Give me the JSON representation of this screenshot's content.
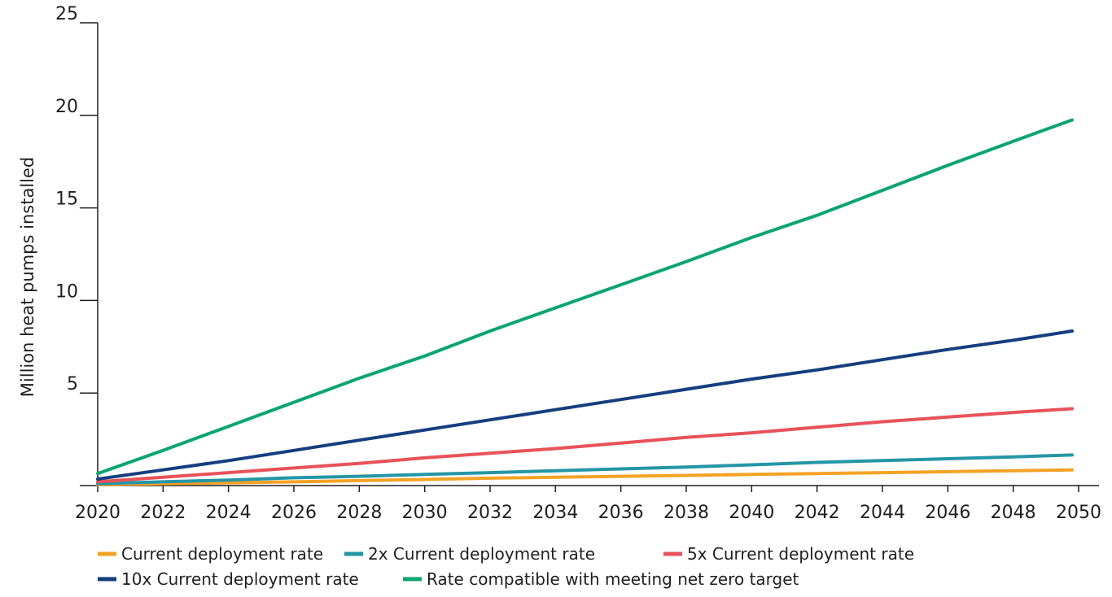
{
  "chart_data": {
    "type": "line",
    "ylabel": "Million heat pumps installed",
    "xlim": [
      2020,
      2050
    ],
    "ylim": [
      0,
      25
    ],
    "x_ticks": [
      2020,
      2022,
      2024,
      2026,
      2028,
      2030,
      2032,
      2034,
      2036,
      2038,
      2040,
      2042,
      2044,
      2046,
      2048,
      2050
    ],
    "y_ticks": [
      5,
      10,
      15,
      20,
      25
    ],
    "grid": false,
    "legend_position": "bottom",
    "x": [
      2020,
      2022,
      2024,
      2026,
      2028,
      2030,
      2032,
      2034,
      2036,
      2038,
      2040,
      2042,
      2044,
      2046,
      2048,
      2049.8
    ],
    "series": [
      {
        "name": "Current deployment rate",
        "color": "#f4a226",
        "values": [
          0.05,
          0.1,
          0.15,
          0.2,
          0.27,
          0.33,
          0.4,
          0.45,
          0.5,
          0.55,
          0.6,
          0.65,
          0.7,
          0.75,
          0.8,
          0.85
        ]
      },
      {
        "name": "2x Current deployment rate",
        "color": "#2596a6",
        "values": [
          0.1,
          0.2,
          0.3,
          0.42,
          0.5,
          0.6,
          0.7,
          0.8,
          0.9,
          1.0,
          1.12,
          1.25,
          1.35,
          1.45,
          1.55,
          1.65
        ]
      },
      {
        "name": "5x Current deployment rate",
        "color": "#e8525a",
        "values": [
          0.2,
          0.45,
          0.7,
          0.95,
          1.2,
          1.5,
          1.75,
          2.0,
          2.3,
          2.6,
          2.85,
          3.15,
          3.45,
          3.7,
          3.95,
          4.15
        ]
      },
      {
        "name": "10x Current deployment rate",
        "color": "#163e7f",
        "values": [
          0.35,
          0.85,
          1.35,
          1.9,
          2.45,
          3.0,
          3.55,
          4.1,
          4.65,
          5.2,
          5.75,
          6.25,
          6.8,
          7.35,
          7.85,
          8.35
        ]
      },
      {
        "name": "Rate compatible with meeting net zero target",
        "color": "#0ba56f",
        "values": [
          0.65,
          1.9,
          3.2,
          4.5,
          5.8,
          7.0,
          8.35,
          9.6,
          10.85,
          12.1,
          13.4,
          14.6,
          15.95,
          17.3,
          18.6,
          19.75
        ]
      }
    ]
  }
}
